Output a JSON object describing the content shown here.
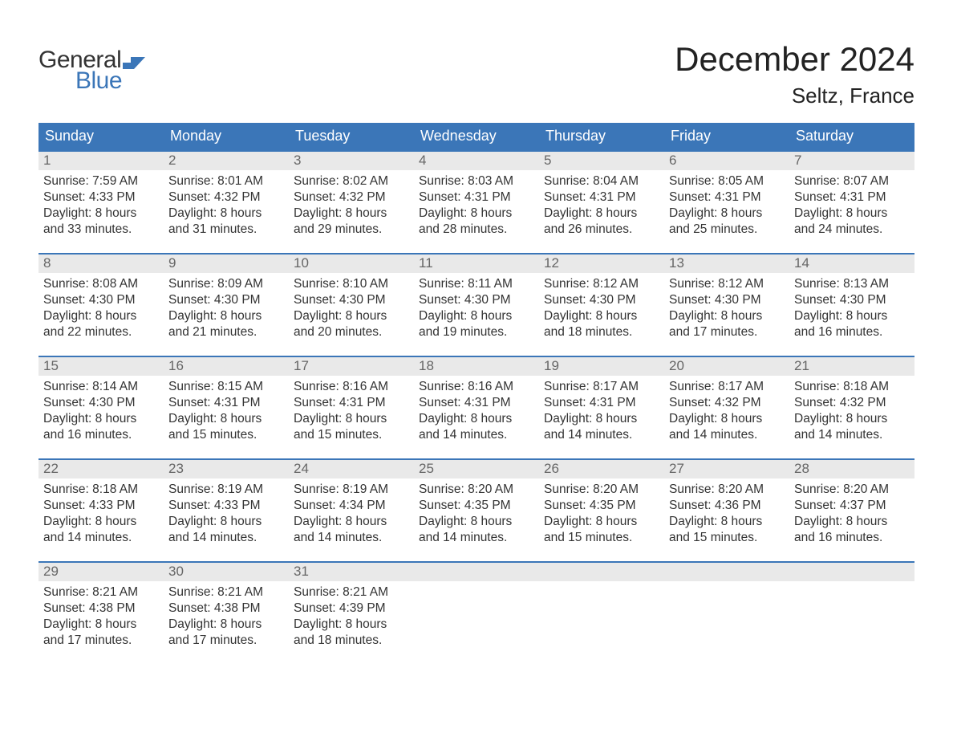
{
  "brand": {
    "part1": "General",
    "part2": "Blue",
    "color_dark": "#333333",
    "color_blue": "#3b76b8"
  },
  "title": "December 2024",
  "location": "Seltz, France",
  "colors": {
    "header_bg": "#3b76b8",
    "header_text": "#ffffff",
    "daynum_bg": "#e9e9e9",
    "daynum_text": "#666666",
    "body_text": "#333333",
    "row_border": "#3b76b8"
  },
  "weekdays": [
    "Sunday",
    "Monday",
    "Tuesday",
    "Wednesday",
    "Thursday",
    "Friday",
    "Saturday"
  ],
  "weeks": [
    [
      {
        "n": "1",
        "sr": "7:59 AM",
        "ss": "4:33 PM",
        "dl1": "Daylight: 8 hours",
        "dl2": "and 33 minutes."
      },
      {
        "n": "2",
        "sr": "8:01 AM",
        "ss": "4:32 PM",
        "dl1": "Daylight: 8 hours",
        "dl2": "and 31 minutes."
      },
      {
        "n": "3",
        "sr": "8:02 AM",
        "ss": "4:32 PM",
        "dl1": "Daylight: 8 hours",
        "dl2": "and 29 minutes."
      },
      {
        "n": "4",
        "sr": "8:03 AM",
        "ss": "4:31 PM",
        "dl1": "Daylight: 8 hours",
        "dl2": "and 28 minutes."
      },
      {
        "n": "5",
        "sr": "8:04 AM",
        "ss": "4:31 PM",
        "dl1": "Daylight: 8 hours",
        "dl2": "and 26 minutes."
      },
      {
        "n": "6",
        "sr": "8:05 AM",
        "ss": "4:31 PM",
        "dl1": "Daylight: 8 hours",
        "dl2": "and 25 minutes."
      },
      {
        "n": "7",
        "sr": "8:07 AM",
        "ss": "4:31 PM",
        "dl1": "Daylight: 8 hours",
        "dl2": "and 24 minutes."
      }
    ],
    [
      {
        "n": "8",
        "sr": "8:08 AM",
        "ss": "4:30 PM",
        "dl1": "Daylight: 8 hours",
        "dl2": "and 22 minutes."
      },
      {
        "n": "9",
        "sr": "8:09 AM",
        "ss": "4:30 PM",
        "dl1": "Daylight: 8 hours",
        "dl2": "and 21 minutes."
      },
      {
        "n": "10",
        "sr": "8:10 AM",
        "ss": "4:30 PM",
        "dl1": "Daylight: 8 hours",
        "dl2": "and 20 minutes."
      },
      {
        "n": "11",
        "sr": "8:11 AM",
        "ss": "4:30 PM",
        "dl1": "Daylight: 8 hours",
        "dl2": "and 19 minutes."
      },
      {
        "n": "12",
        "sr": "8:12 AM",
        "ss": "4:30 PM",
        "dl1": "Daylight: 8 hours",
        "dl2": "and 18 minutes."
      },
      {
        "n": "13",
        "sr": "8:12 AM",
        "ss": "4:30 PM",
        "dl1": "Daylight: 8 hours",
        "dl2": "and 17 minutes."
      },
      {
        "n": "14",
        "sr": "8:13 AM",
        "ss": "4:30 PM",
        "dl1": "Daylight: 8 hours",
        "dl2": "and 16 minutes."
      }
    ],
    [
      {
        "n": "15",
        "sr": "8:14 AM",
        "ss": "4:30 PM",
        "dl1": "Daylight: 8 hours",
        "dl2": "and 16 minutes."
      },
      {
        "n": "16",
        "sr": "8:15 AM",
        "ss": "4:31 PM",
        "dl1": "Daylight: 8 hours",
        "dl2": "and 15 minutes."
      },
      {
        "n": "17",
        "sr": "8:16 AM",
        "ss": "4:31 PM",
        "dl1": "Daylight: 8 hours",
        "dl2": "and 15 minutes."
      },
      {
        "n": "18",
        "sr": "8:16 AM",
        "ss": "4:31 PM",
        "dl1": "Daylight: 8 hours",
        "dl2": "and 14 minutes."
      },
      {
        "n": "19",
        "sr": "8:17 AM",
        "ss": "4:31 PM",
        "dl1": "Daylight: 8 hours",
        "dl2": "and 14 minutes."
      },
      {
        "n": "20",
        "sr": "8:17 AM",
        "ss": "4:32 PM",
        "dl1": "Daylight: 8 hours",
        "dl2": "and 14 minutes."
      },
      {
        "n": "21",
        "sr": "8:18 AM",
        "ss": "4:32 PM",
        "dl1": "Daylight: 8 hours",
        "dl2": "and 14 minutes."
      }
    ],
    [
      {
        "n": "22",
        "sr": "8:18 AM",
        "ss": "4:33 PM",
        "dl1": "Daylight: 8 hours",
        "dl2": "and 14 minutes."
      },
      {
        "n": "23",
        "sr": "8:19 AM",
        "ss": "4:33 PM",
        "dl1": "Daylight: 8 hours",
        "dl2": "and 14 minutes."
      },
      {
        "n": "24",
        "sr": "8:19 AM",
        "ss": "4:34 PM",
        "dl1": "Daylight: 8 hours",
        "dl2": "and 14 minutes."
      },
      {
        "n": "25",
        "sr": "8:20 AM",
        "ss": "4:35 PM",
        "dl1": "Daylight: 8 hours",
        "dl2": "and 14 minutes."
      },
      {
        "n": "26",
        "sr": "8:20 AM",
        "ss": "4:35 PM",
        "dl1": "Daylight: 8 hours",
        "dl2": "and 15 minutes."
      },
      {
        "n": "27",
        "sr": "8:20 AM",
        "ss": "4:36 PM",
        "dl1": "Daylight: 8 hours",
        "dl2": "and 15 minutes."
      },
      {
        "n": "28",
        "sr": "8:20 AM",
        "ss": "4:37 PM",
        "dl1": "Daylight: 8 hours",
        "dl2": "and 16 minutes."
      }
    ],
    [
      {
        "n": "29",
        "sr": "8:21 AM",
        "ss": "4:38 PM",
        "dl1": "Daylight: 8 hours",
        "dl2": "and 17 minutes."
      },
      {
        "n": "30",
        "sr": "8:21 AM",
        "ss": "4:38 PM",
        "dl1": "Daylight: 8 hours",
        "dl2": "and 17 minutes."
      },
      {
        "n": "31",
        "sr": "8:21 AM",
        "ss": "4:39 PM",
        "dl1": "Daylight: 8 hours",
        "dl2": "and 18 minutes."
      },
      null,
      null,
      null,
      null
    ]
  ],
  "labels": {
    "sunrise": "Sunrise: ",
    "sunset": "Sunset: "
  }
}
